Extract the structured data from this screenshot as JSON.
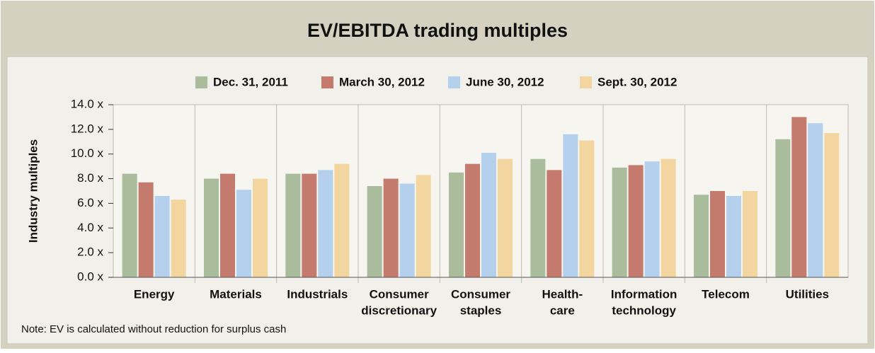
{
  "chart_data": {
    "type": "bar",
    "title": "EV/EBITDA trading multiples",
    "y_label": "Industry multiples",
    "note": "Note: EV is calculated without reduction for surplus cash",
    "categories": [
      [
        "Energy"
      ],
      [
        "Materials"
      ],
      [
        "Industrials"
      ],
      [
        "Consumer",
        "discretionary"
      ],
      [
        "Consumer",
        "staples"
      ],
      [
        "Health-",
        "care"
      ],
      [
        "Information",
        "technology"
      ],
      [
        "Telecom"
      ],
      [
        "Utilities"
      ]
    ],
    "series": [
      {
        "name": "Dec. 31, 2011",
        "color": "#a9bd9d",
        "values": [
          8.4,
          8.0,
          8.4,
          7.4,
          8.5,
          9.6,
          8.9,
          6.7,
          11.2
        ]
      },
      {
        "name": "March 30, 2012",
        "color": "#c47b6d",
        "values": [
          7.7,
          8.4,
          8.4,
          8.0,
          9.2,
          8.7,
          9.1,
          7.0,
          13.0
        ]
      },
      {
        "name": "June 30, 2012",
        "color": "#b4d0ec",
        "values": [
          6.6,
          7.1,
          8.7,
          7.6,
          10.1,
          11.6,
          9.4,
          6.6,
          12.5
        ]
      },
      {
        "name": "Sept. 30, 2012",
        "color": "#f3d59f",
        "values": [
          6.3,
          8.0,
          9.2,
          8.3,
          9.6,
          11.1,
          9.6,
          7.0,
          11.7
        ]
      }
    ],
    "ylim": [
      0,
      14
    ],
    "yticks": [
      {
        "value": 0,
        "label": "0.0 x"
      },
      {
        "value": 2,
        "label": "2.0 x"
      },
      {
        "value": 4,
        "label": "4.0 x"
      },
      {
        "value": 6,
        "label": "6.0 x"
      },
      {
        "value": 8,
        "label": "8.0 x"
      },
      {
        "value": 10,
        "label": "10.0 x"
      },
      {
        "value": 12,
        "label": "12.0 x"
      },
      {
        "value": 14,
        "label": "14.0 x"
      }
    ],
    "legend": "top"
  }
}
